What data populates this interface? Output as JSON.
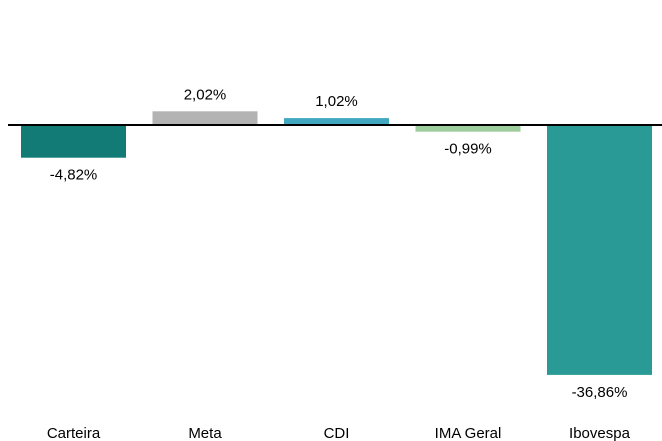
{
  "chart_data": {
    "type": "bar",
    "categories": [
      "Carteira",
      "Meta",
      "CDI",
      "IMA Geral",
      "Ibovespa"
    ],
    "values": [
      -4.82,
      2.02,
      1.02,
      -0.99,
      -36.86
    ],
    "value_labels": [
      "-4,82%",
      "2,02%",
      "1,02%",
      "-0,99%",
      "-36,86%"
    ],
    "colors": [
      "#127b76",
      "#b3b3b3",
      "#42a8bf",
      "#9fce9e",
      "#299a96"
    ],
    "title": "",
    "xlabel": "",
    "ylabel": "",
    "ylim": [
      -37,
      2.5
    ],
    "grid": false,
    "legend": "none"
  }
}
